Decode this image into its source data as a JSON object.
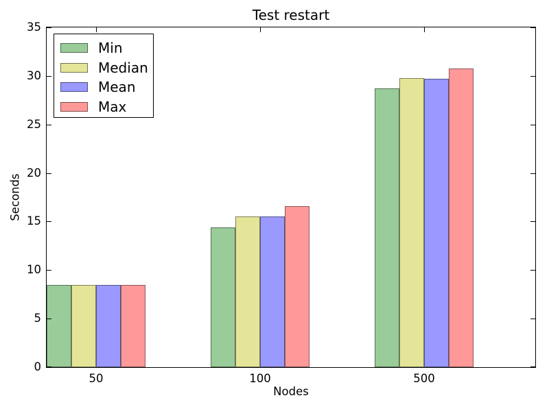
{
  "chart_data": {
    "type": "bar",
    "title": "Test restart",
    "xlabel": "Nodes",
    "ylabel": "Seconds",
    "categories": [
      "50",
      "100",
      "500"
    ],
    "series": [
      {
        "name": "Min",
        "color": "#99cc99",
        "values": [
          8.5,
          14.4,
          28.7
        ]
      },
      {
        "name": "Median",
        "color": "#e5e599",
        "values": [
          8.5,
          15.5,
          29.8
        ]
      },
      {
        "name": "Mean",
        "color": "#9999ff",
        "values": [
          8.5,
          15.5,
          29.7
        ]
      },
      {
        "name": "Max",
        "color": "#ff9999",
        "values": [
          8.5,
          16.6,
          30.8
        ]
      }
    ],
    "ylim": [
      0,
      35
    ],
    "yticks": [
      0,
      5,
      10,
      15,
      20,
      25,
      30,
      35
    ],
    "legend_position": "upper left",
    "bar_edge_color": "rgba(0,0,0,0.45)",
    "axis_color": "#000000",
    "background_color": "#ffffff",
    "grid": false
  }
}
